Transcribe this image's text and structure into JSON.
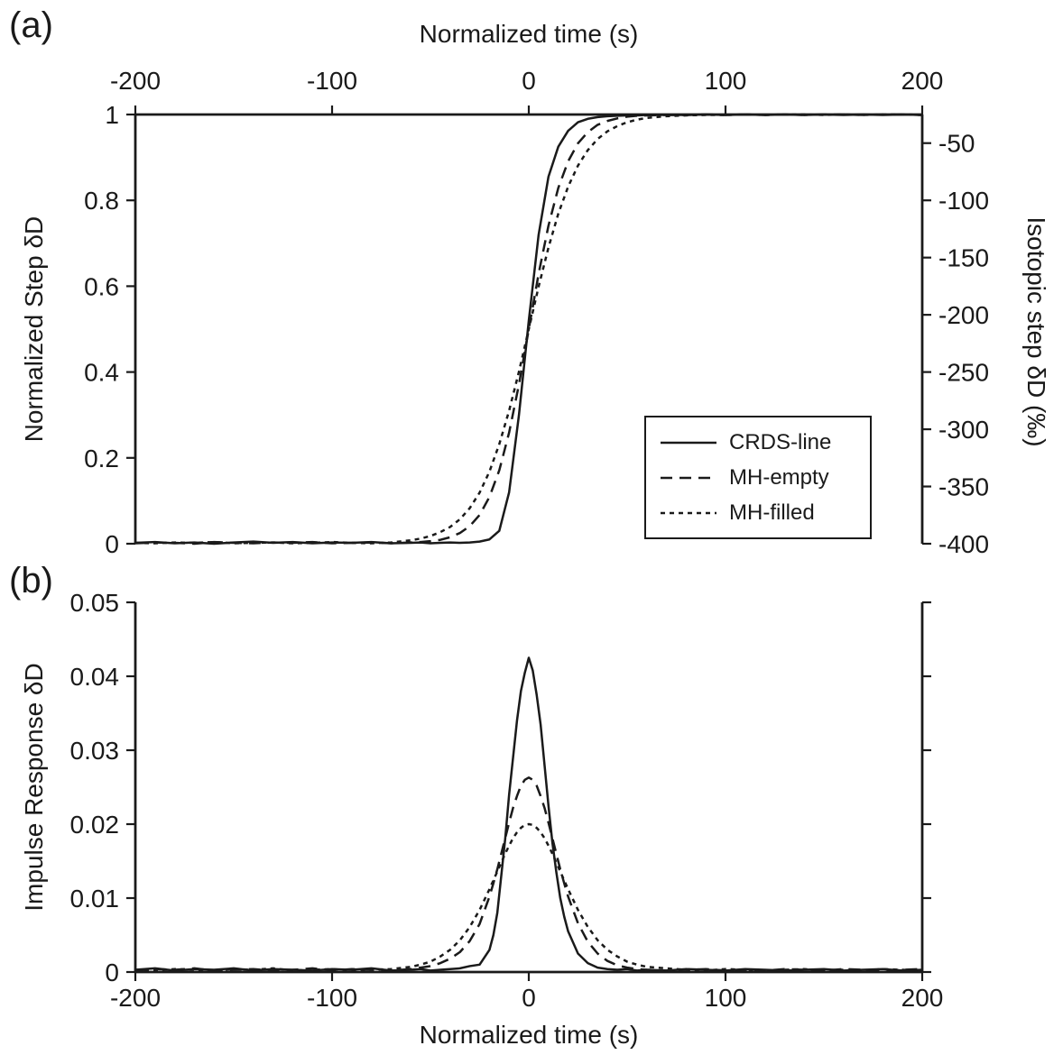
{
  "style": {
    "ink": "#1a1a1a",
    "background": "#ffffff"
  },
  "chart_data": [
    {
      "id": "step",
      "type": "line",
      "panel_label": "(a)",
      "grid": false,
      "x_axis": {
        "title": "Normalized time (s)",
        "position": "top",
        "range": [
          -200,
          200
        ],
        "ticks": [
          -200,
          -100,
          0,
          100,
          200
        ],
        "tick_labels": [
          "-200",
          "-100",
          "0",
          "100",
          "200"
        ]
      },
      "y_axis_left": {
        "title": "Normalized Step δD",
        "range": [
          0,
          1
        ],
        "ticks": [
          0,
          0.2,
          0.4,
          0.6,
          0.8,
          1
        ],
        "tick_labels": [
          "0",
          "0.2",
          "0.4",
          "0.6",
          "0.8",
          "1"
        ]
      },
      "y_axis_right": {
        "title": "Isotopic step δD (‰)",
        "range": [
          -400,
          -25
        ],
        "ticks": [
          -50,
          -100,
          -150,
          -200,
          -250,
          -300,
          -350,
          -400
        ],
        "tick_labels": [
          "-50",
          "-100",
          "-150",
          "-200",
          "-250",
          "-300",
          "-350",
          "-400"
        ]
      },
      "legend": {
        "position": "inside lower right",
        "entries": [
          {
            "label": "CRDS-line",
            "style": "solid"
          },
          {
            "label": "MH-empty",
            "style": "dashed"
          },
          {
            "label": "MH-filled",
            "style": "short-dash"
          }
        ]
      },
      "series": [
        {
          "name": "CRDS-line",
          "line_style": "solid",
          "x": [
            -200,
            -190,
            -180,
            -170,
            -160,
            -150,
            -140,
            -130,
            -120,
            -110,
            -100,
            -90,
            -80,
            -70,
            -60,
            -55,
            -50,
            -45,
            -40,
            -35,
            -30,
            -25,
            -20,
            -15,
            -10,
            -5,
            0,
            5,
            10,
            15,
            20,
            25,
            30,
            35,
            40,
            45,
            50,
            55,
            60,
            70,
            80,
            90,
            100,
            110,
            120,
            130,
            140,
            150,
            160,
            170,
            180,
            190,
            200
          ],
          "y": [
            0.002,
            0.004,
            0.001,
            0.003,
            0.0,
            0.003,
            0.005,
            0.002,
            0.004,
            0.001,
            0.003,
            0.002,
            0.004,
            0.001,
            0.002,
            0.003,
            0.001,
            0.002,
            0.003,
            0.002,
            0.003,
            0.005,
            0.01,
            0.03,
            0.12,
            0.3,
            0.52,
            0.72,
            0.855,
            0.925,
            0.962,
            0.982,
            0.99,
            0.994,
            0.996,
            0.997,
            0.998,
            0.998,
            0.999,
            0.999,
            0.999,
            1.0,
            0.999,
            1.0,
            0.999,
            1.0,
            0.999,
            1.0,
            0.999,
            1.0,
            0.999,
            1.0,
            0.999
          ]
        },
        {
          "name": "MH-empty",
          "line_style": "dashed",
          "x": [
            -200,
            -190,
            -180,
            -170,
            -160,
            -150,
            -140,
            -130,
            -120,
            -110,
            -100,
            -90,
            -80,
            -70,
            -60,
            -55,
            -50,
            -45,
            -40,
            -35,
            -30,
            -25,
            -20,
            -15,
            -10,
            -5,
            0,
            5,
            10,
            15,
            20,
            25,
            30,
            35,
            40,
            45,
            50,
            55,
            60,
            70,
            80,
            90,
            100,
            110,
            120,
            130,
            140,
            150,
            160,
            170,
            180,
            190,
            200
          ],
          "y": [
            0.001,
            0.003,
            0.002,
            0.0,
            0.004,
            0.002,
            0.001,
            0.003,
            0.002,
            0.004,
            0.001,
            0.002,
            0.003,
            0.001,
            0.003,
            0.004,
            0.006,
            0.009,
            0.015,
            0.025,
            0.041,
            0.067,
            0.109,
            0.171,
            0.259,
            0.371,
            0.5,
            0.629,
            0.741,
            0.829,
            0.891,
            0.933,
            0.959,
            0.976,
            0.985,
            0.991,
            0.995,
            0.997,
            0.998,
            0.999,
            0.999,
            1.0,
            0.999,
            1.0,
            0.999,
            1.0,
            0.999,
            1.0,
            1.0,
            0.999,
            1.0,
            1.0,
            0.999
          ]
        },
        {
          "name": "MH-filled",
          "line_style": "short-dash",
          "x": [
            -200,
            -190,
            -180,
            -170,
            -160,
            -150,
            -140,
            -130,
            -120,
            -110,
            -100,
            -90,
            -80,
            -70,
            -60,
            -55,
            -50,
            -45,
            -40,
            -35,
            -30,
            -25,
            -20,
            -15,
            -10,
            -5,
            0,
            5,
            10,
            15,
            20,
            25,
            30,
            35,
            40,
            45,
            50,
            55,
            60,
            70,
            80,
            90,
            100,
            110,
            120,
            130,
            140,
            150,
            160,
            170,
            180,
            190,
            200
          ],
          "y": [
            0.002,
            0.001,
            0.003,
            0.002,
            0.004,
            0.001,
            0.002,
            0.003,
            0.001,
            0.002,
            0.004,
            0.002,
            0.001,
            0.003,
            0.008,
            0.012,
            0.018,
            0.027,
            0.039,
            0.057,
            0.083,
            0.119,
            0.168,
            0.232,
            0.31,
            0.401,
            0.5,
            0.599,
            0.69,
            0.769,
            0.832,
            0.881,
            0.917,
            0.943,
            0.961,
            0.973,
            0.982,
            0.988,
            0.992,
            0.996,
            0.998,
            0.999,
            0.999,
            1.0,
            0.999,
            1.0,
            1.0,
            0.999,
            1.0,
            0.999,
            1.0,
            1.0,
            0.999
          ]
        }
      ]
    },
    {
      "id": "impulse",
      "type": "line",
      "panel_label": "(b)",
      "grid": false,
      "x_axis": {
        "title": "Normalized time (s)",
        "position": "bottom",
        "range": [
          -200,
          200
        ],
        "ticks": [
          -200,
          -100,
          0,
          100,
          200
        ],
        "tick_labels": [
          "-200",
          "-100",
          "0",
          "100",
          "200"
        ]
      },
      "y_axis_left": {
        "title": "Impulse Response δD",
        "range": [
          0,
          0.05
        ],
        "ticks": [
          0,
          0.01,
          0.02,
          0.03,
          0.04,
          0.05
        ],
        "tick_labels": [
          "0",
          "0.01",
          "0.02",
          "0.03",
          "0.04",
          "0.05"
        ]
      },
      "series": [
        {
          "name": "CRDS-line",
          "line_style": "solid",
          "x": [
            -200,
            -190,
            -180,
            -170,
            -160,
            -150,
            -140,
            -130,
            -120,
            -110,
            -100,
            -90,
            -80,
            -70,
            -60,
            -55,
            -50,
            -45,
            -40,
            -35,
            -30,
            -25,
            -20,
            -18,
            -16,
            -14,
            -12,
            -10,
            -8,
            -6,
            -4,
            -2,
            0,
            2,
            4,
            6,
            8,
            10,
            12,
            14,
            16,
            18,
            20,
            25,
            30,
            35,
            40,
            45,
            50,
            55,
            60,
            70,
            80,
            90,
            100,
            110,
            120,
            130,
            140,
            150,
            160,
            170,
            180,
            190,
            200
          ],
          "y": [
            0.0003,
            0.0005,
            0.0002,
            0.0004,
            0.0003,
            0.0005,
            0.0002,
            0.0004,
            0.0003,
            0.0002,
            0.0004,
            0.0003,
            0.0005,
            0.0002,
            0.0003,
            0.0004,
            0.0002,
            0.0003,
            0.0004,
            0.0005,
            0.0008,
            0.001,
            0.003,
            0.005,
            0.008,
            0.013,
            0.018,
            0.024,
            0.029,
            0.034,
            0.038,
            0.0405,
            0.0425,
            0.0408,
            0.0375,
            0.0335,
            0.028,
            0.0225,
            0.0175,
            0.0135,
            0.01,
            0.0075,
            0.0055,
            0.0025,
            0.0012,
            0.0006,
            0.0004,
            0.0003,
            0.0004,
            0.0002,
            0.0003,
            0.0002,
            0.0004,
            0.0003,
            0.0002,
            0.0004,
            0.0003,
            0.0002,
            0.0003,
            0.0004,
            0.0002,
            0.0003,
            0.0004,
            0.0002,
            0.0003
          ]
        },
        {
          "name": "MH-empty",
          "line_style": "dashed",
          "x": [
            -200,
            -190,
            -180,
            -170,
            -160,
            -150,
            -140,
            -130,
            -120,
            -110,
            -100,
            -90,
            -80,
            -70,
            -60,
            -55,
            -50,
            -45,
            -40,
            -35,
            -30,
            -25,
            -20,
            -18,
            -16,
            -14,
            -12,
            -10,
            -8,
            -6,
            -4,
            -2,
            0,
            2,
            4,
            6,
            8,
            10,
            12,
            14,
            16,
            18,
            20,
            25,
            30,
            35,
            40,
            45,
            50,
            55,
            60,
            70,
            80,
            90,
            100,
            110,
            120,
            130,
            140,
            150,
            160,
            170,
            180,
            190,
            200
          ],
          "y": [
            0.0002,
            0.0004,
            0.0003,
            0.0005,
            0.0002,
            0.0003,
            0.0004,
            0.0002,
            0.0003,
            0.0005,
            0.0002,
            0.0004,
            0.0003,
            0.0002,
            0.0004,
            0.0006,
            0.0008,
            0.0012,
            0.0018,
            0.0027,
            0.0042,
            0.0065,
            0.0102,
            0.012,
            0.0139,
            0.016,
            0.0181,
            0.0202,
            0.0222,
            0.0238,
            0.0252,
            0.026,
            0.0263,
            0.026,
            0.0252,
            0.0238,
            0.0222,
            0.0202,
            0.0181,
            0.016,
            0.0139,
            0.012,
            0.0102,
            0.0066,
            0.0041,
            0.0025,
            0.0015,
            0.0009,
            0.0006,
            0.0004,
            0.0003,
            0.0002,
            0.0003,
            0.0004,
            0.0002,
            0.0003,
            0.0002,
            0.0004,
            0.0003,
            0.0002,
            0.0004,
            0.0003,
            0.0002,
            0.0003,
            0.0004
          ]
        },
        {
          "name": "MH-filled",
          "line_style": "short-dash",
          "x": [
            -200,
            -190,
            -180,
            -170,
            -160,
            -150,
            -140,
            -130,
            -120,
            -110,
            -100,
            -90,
            -80,
            -70,
            -60,
            -55,
            -50,
            -45,
            -40,
            -35,
            -30,
            -25,
            -20,
            -18,
            -16,
            -14,
            -12,
            -10,
            -8,
            -6,
            -4,
            -2,
            0,
            2,
            4,
            6,
            8,
            10,
            12,
            14,
            16,
            18,
            20,
            25,
            30,
            35,
            40,
            45,
            50,
            55,
            60,
            70,
            80,
            90,
            100,
            110,
            120,
            130,
            140,
            150,
            160,
            170,
            180,
            190,
            200
          ],
          "y": [
            0.0003,
            0.0002,
            0.0004,
            0.0003,
            0.0002,
            0.0004,
            0.0003,
            0.0005,
            0.0002,
            0.0003,
            0.0004,
            0.0002,
            0.0003,
            0.0004,
            0.0007,
            0.001,
            0.0014,
            0.0021,
            0.003,
            0.0043,
            0.0061,
            0.0084,
            0.0112,
            0.0124,
            0.0136,
            0.0148,
            0.016,
            0.0171,
            0.0181,
            0.0189,
            0.0195,
            0.0199,
            0.02,
            0.0199,
            0.0195,
            0.0189,
            0.0181,
            0.0171,
            0.016,
            0.0148,
            0.0136,
            0.0124,
            0.0112,
            0.0084,
            0.0061,
            0.0043,
            0.003,
            0.0021,
            0.0014,
            0.001,
            0.0007,
            0.0005,
            0.0003,
            0.0002,
            0.0004,
            0.0003,
            0.0002,
            0.0003,
            0.0004,
            0.0002,
            0.0003,
            0.0002,
            0.0004,
            0.0003,
            0.0002
          ]
        }
      ]
    }
  ]
}
